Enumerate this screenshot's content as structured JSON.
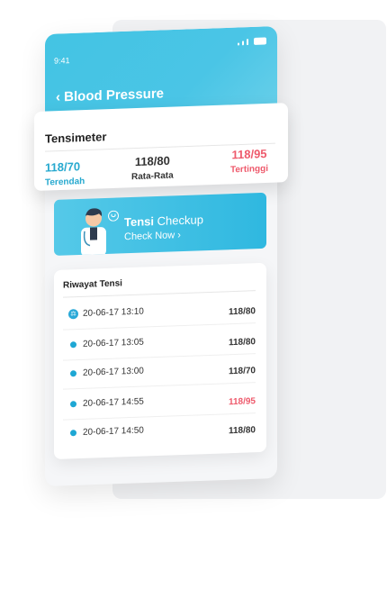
{
  "status": {
    "time": "9:41"
  },
  "header": {
    "title": "‹ Blood Pressure"
  },
  "tensimeter": {
    "title": "Tensimeter",
    "lowest": {
      "value": "118/70",
      "label": "Terendah"
    },
    "average": {
      "value": "118/80",
      "label": "Rata-Rata"
    },
    "highest": {
      "value": "118/95",
      "label": "Tertinggi"
    }
  },
  "checkup": {
    "title_bold": "Tensi",
    "title_rest": " Checkup",
    "link": "Check Now ›"
  },
  "history": {
    "title": "Riwayat Tensi",
    "rows": [
      {
        "date": "20-06-17 13:10",
        "value": "118/80",
        "icon": "scale-icon"
      },
      {
        "date": "20-06-17 13:05",
        "value": "118/80",
        "icon": "dot"
      },
      {
        "date": "20-06-17 13:00",
        "value": "118/70",
        "icon": "dot"
      },
      {
        "date": "20-06-17 14:55",
        "value": "118/95",
        "icon": "dot",
        "high": true
      },
      {
        "date": "20-06-17 14:50",
        "value": "118/80",
        "icon": "dot"
      }
    ]
  },
  "colors": {
    "accent": "#43c4e3",
    "low": "#27a9cf",
    "high": "#ee5a6c"
  }
}
